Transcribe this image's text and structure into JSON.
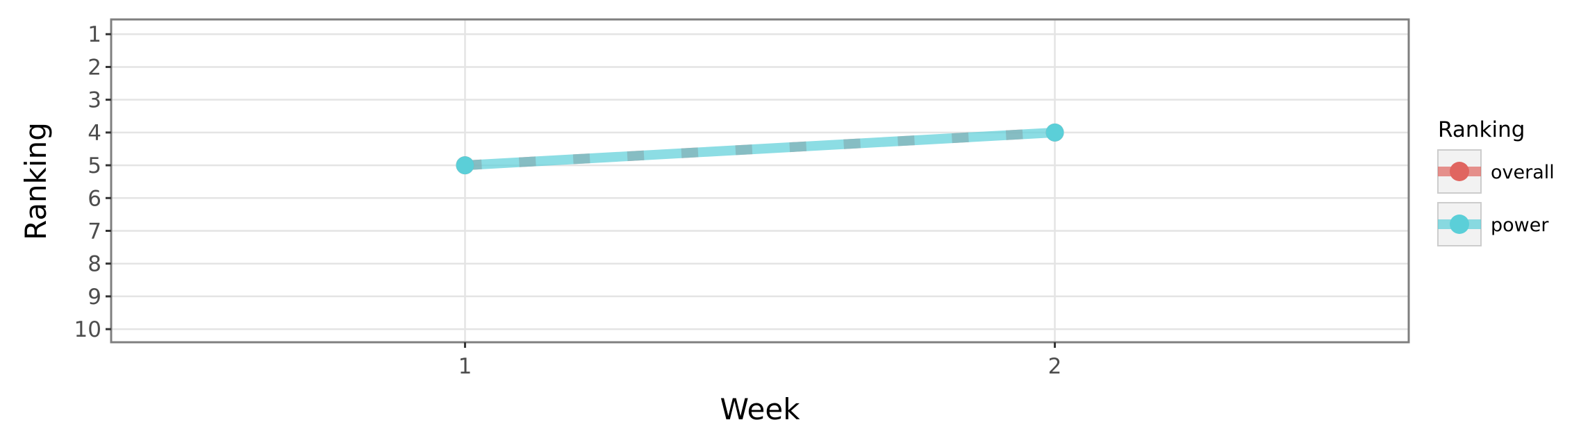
{
  "chart_data": {
    "type": "line",
    "title": "",
    "xlabel": "Week",
    "ylabel": "Ranking",
    "x": [
      1,
      2
    ],
    "x_ticks": [
      "1",
      "2"
    ],
    "xlim": [
      0.4,
      2.6
    ],
    "y_ticks": [
      "1",
      "2",
      "3",
      "4",
      "5",
      "6",
      "7",
      "8",
      "9",
      "10"
    ],
    "ylim": [
      10.4,
      0.55
    ],
    "y_reversed": true,
    "grid": true,
    "legend": {
      "title": "Ranking",
      "placement": "right"
    },
    "series": [
      {
        "name": "overall",
        "values": [
          5,
          4
        ],
        "color": "#E06560",
        "linestyle": "dashed"
      },
      {
        "name": "power",
        "values": [
          5,
          4
        ],
        "color": "#5BCFD8",
        "linestyle": "solid"
      }
    ]
  }
}
